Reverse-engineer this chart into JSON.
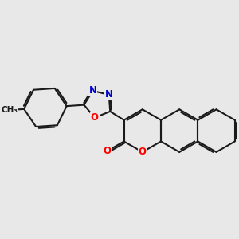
{
  "bg_color": "#e8e8e8",
  "bond_color": "#1a1a1a",
  "bond_width": 1.5,
  "atom_colors": {
    "O": "#ff0000",
    "N": "#0000cc",
    "C": "#1a1a1a"
  },
  "font_size": 8.5,
  "fig_size": [
    3.0,
    3.0
  ],
  "dpi": 100,
  "S": 0.95,
  "ox_r": 0.63,
  "tol_S": 0.95,
  "dbl_off": 0.072,
  "dbl_shorten": 0.13
}
